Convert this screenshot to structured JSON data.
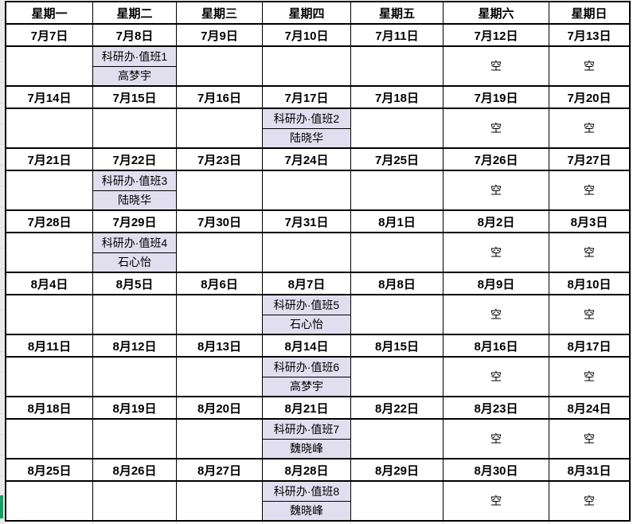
{
  "colors": {
    "duty_cell_bg": "#E1DFEF",
    "grid_border": "#000000",
    "accent_green": "#1F9C63",
    "gutter_gray": "#EAEAEA",
    "faint_gridline": "#D9D9D9"
  },
  "calendar": {
    "day_headers": [
      "星期一",
      "星期二",
      "星期三",
      "星期四",
      "星期五",
      "星期六",
      "星期日"
    ],
    "weeks": [
      {
        "dates": [
          "7月7日",
          "7月8日",
          "7月9日",
          "7月10日",
          "7月11日",
          "7月12日",
          "7月13日"
        ],
        "duty_col": 1,
        "duty_title": "科研办·值班1",
        "duty_person": "高梦宇",
        "saturday_label": "空",
        "sunday_label": "空"
      },
      {
        "dates": [
          "7月14日",
          "7月15日",
          "7月16日",
          "7月17日",
          "7月18日",
          "7月19日",
          "7月20日"
        ],
        "duty_col": 3,
        "duty_title": "科研办·值班2",
        "duty_person": "陆晓华",
        "saturday_label": "空",
        "sunday_label": "空"
      },
      {
        "dates": [
          "7月21日",
          "7月22日",
          "7月23日",
          "7月24日",
          "7月25日",
          "7月26日",
          "7月27日"
        ],
        "duty_col": 1,
        "duty_title": "科研办·值班3",
        "duty_person": "陆晓华",
        "saturday_label": "空",
        "sunday_label": "空"
      },
      {
        "dates": [
          "7月28日",
          "7月29日",
          "7月30日",
          "7月31日",
          "8月1日",
          "8月2日",
          "8月3日"
        ],
        "duty_col": 1,
        "duty_title": "科研办·值班4",
        "duty_person": "石心怡",
        "saturday_label": "空",
        "sunday_label": "空"
      },
      {
        "dates": [
          "8月4日",
          "8月5日",
          "8月6日",
          "8月7日",
          "8月8日",
          "8月9日",
          "8月10日"
        ],
        "duty_col": 3,
        "duty_title": "科研办·值班5",
        "duty_person": "石心怡",
        "saturday_label": "空",
        "sunday_label": "空"
      },
      {
        "dates": [
          "8月11日",
          "8月12日",
          "8月13日",
          "8月14日",
          "8月15日",
          "8月16日",
          "8月17日"
        ],
        "duty_col": 3,
        "duty_title": "科研办·值班6",
        "duty_person": "高梦宇",
        "saturday_label": "空",
        "sunday_label": "空"
      },
      {
        "dates": [
          "8月18日",
          "8月19日",
          "8月20日",
          "8月21日",
          "8月22日",
          "8月23日",
          "8月24日"
        ],
        "duty_col": 3,
        "duty_title": "科研办·值班7",
        "duty_person": "魏晓峰",
        "saturday_label": "空",
        "sunday_label": "空"
      },
      {
        "dates": [
          "8月25日",
          "8月26日",
          "8月27日",
          "8月28日",
          "8月29日",
          "8月30日",
          "8月31日"
        ],
        "duty_col": 3,
        "duty_title": "科研办·值班8",
        "duty_person": "魏晓峰",
        "saturday_label": "空",
        "sunday_label": "空"
      }
    ]
  }
}
